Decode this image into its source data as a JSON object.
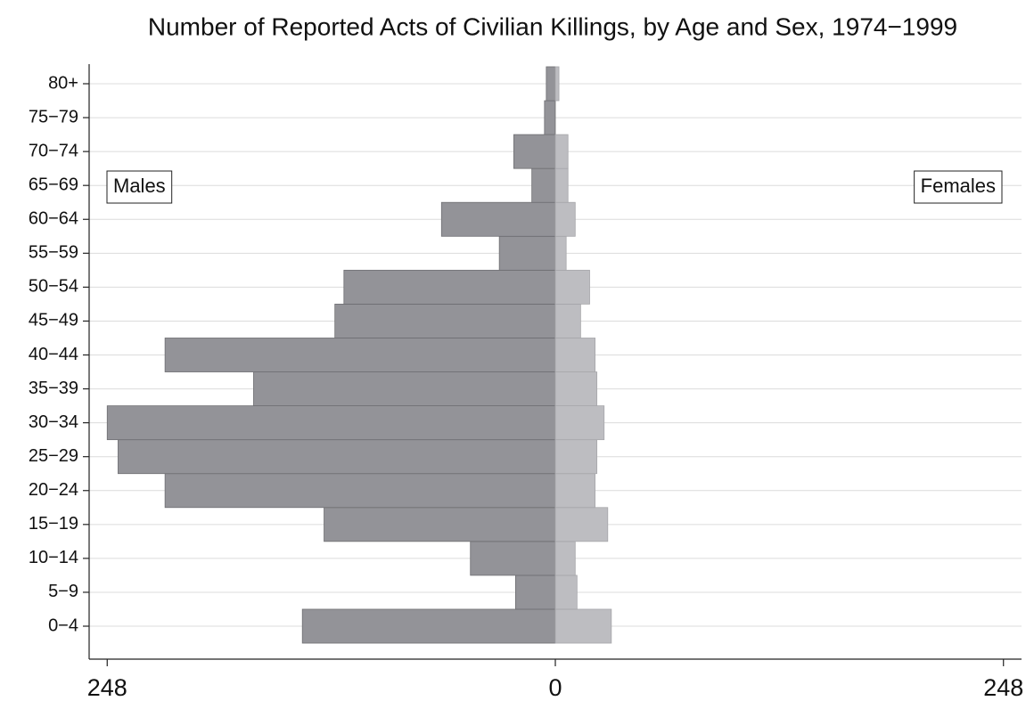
{
  "chart_data": {
    "type": "pyramid",
    "title": "Number of Reported Acts of Civilian Killings, by Age and Sex, 1974−1999",
    "categories": [
      "0−4",
      "5−9",
      "10−14",
      "15−19",
      "20−24",
      "25−29",
      "30−34",
      "35−39",
      "40−44",
      "45−49",
      "50−54",
      "55−59",
      "60−64",
      "65−69",
      "70−74",
      "75−79",
      "80+"
    ],
    "series": [
      {
        "name": "Males",
        "side": "left",
        "color": "#939398",
        "values": [
          140,
          22,
          47,
          128,
          216,
          242,
          248,
          167,
          216,
          122,
          117,
          31,
          63,
          13,
          23,
          6,
          5
        ]
      },
      {
        "name": "Females",
        "side": "right",
        "color": "#bdbdc1",
        "values": [
          31,
          12,
          11,
          29,
          22,
          23,
          27,
          23,
          22,
          14,
          19,
          6,
          11,
          7,
          7,
          0,
          2
        ]
      }
    ],
    "xlim": [
      -258,
      258
    ],
    "xticks": [
      {
        "value": -248,
        "label": "248"
      },
      0,
      248
    ],
    "grid": true
  }
}
